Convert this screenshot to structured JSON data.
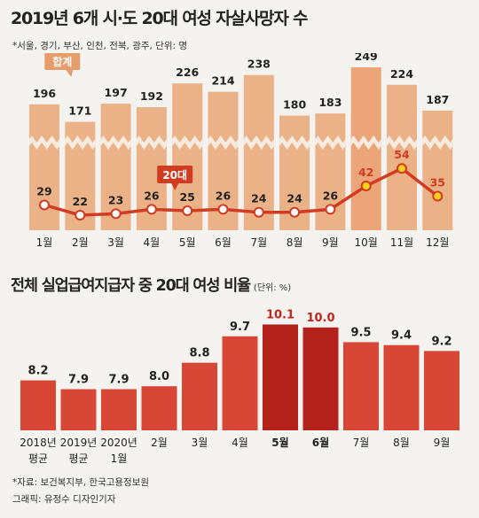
{
  "header": {
    "title": "2019년 6개 시·도 20대 여성 자살사망자 수",
    "subtitle": "*서울, 경기, 부산, 인천, 전북, 광주, 단위: 명"
  },
  "chart_data": [
    {
      "type": "bar",
      "categories": [
        "1월",
        "2월",
        "3월",
        "4월",
        "5월",
        "6월",
        "7월",
        "8월",
        "9월",
        "10월",
        "11월",
        "12월"
      ],
      "series": [
        {
          "name": "합계",
          "values": [
            196,
            171,
            197,
            192,
            226,
            214,
            238,
            180,
            183,
            249,
            224,
            187
          ]
        },
        {
          "name": "20대",
          "type": "line",
          "values": [
            29,
            22,
            23,
            26,
            25,
            26,
            24,
            24,
            26,
            42,
            54,
            35
          ]
        }
      ],
      "colors": {
        "bar": "#ecb287",
        "bar_highlight": "#eca578",
        "line": "#d03b22",
        "marker_highlight": "#f5d319",
        "axis_break": "#f7ebe0"
      }
    },
    {
      "type": "bar",
      "title": "전체 실업급여지급자 중 20대 여성 비율",
      "unit": "(단위: %)",
      "categories": [
        "2018년\n평균",
        "2019년\n평균",
        "2020년\n1월",
        "2월",
        "3월",
        "4월",
        "5월",
        "6월",
        "7월",
        "8월",
        "9월"
      ],
      "values": [
        8.2,
        7.9,
        7.9,
        8.0,
        8.8,
        9.7,
        10.1,
        10.0,
        9.5,
        9.4,
        9.2
      ],
      "highlight": [
        "5월",
        "6월"
      ],
      "colors": {
        "bar": "#d84735",
        "highlight": "#b3221b",
        "highlight_label": "#c0241c"
      }
    }
  ],
  "footer": {
    "source": "*자료: 보건복지부, 한국고용정보원",
    "credit": "그래픽: 유정수 디자인기자"
  }
}
